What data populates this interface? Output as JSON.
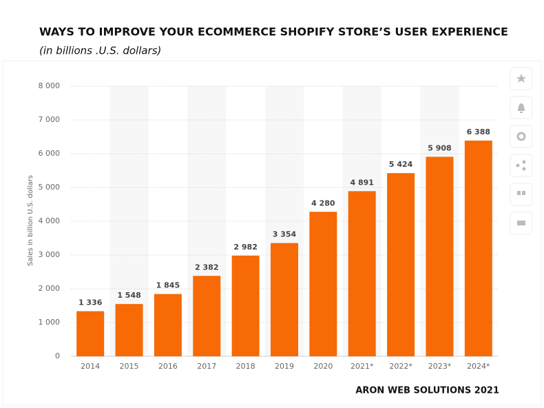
{
  "chart_data": {
    "type": "bar",
    "title": "WAYS TO IMPROVE YOUR ECOMMERCE SHOPIFY STORE’S USER EXPERIENCE",
    "subtitle": "(in billions .U.S. dollars)",
    "y_label": "Sales in billion U.S. dollars",
    "footer": "ARON WEB SOLUTIONS 2021",
    "categories": [
      "2014",
      "2015",
      "2016",
      "2017",
      "2018",
      "2019",
      "2020",
      "2021*",
      "2022*",
      "2023*",
      "2024*"
    ],
    "values": [
      1336,
      1548,
      1845,
      2382,
      2982,
      3354,
      4280,
      4891,
      5424,
      5908,
      6388
    ],
    "value_labels": [
      "1 336",
      "1 548",
      "1 845",
      "2 382",
      "2 982",
      "3 354",
      "4 280",
      "4 891",
      "5 424",
      "5 908",
      "6 388"
    ],
    "color": "#f76a05",
    "ylim": [
      0,
      8000
    ],
    "yticks": [
      0,
      {
        "value": 1000,
        "label": "1 000"
      },
      {
        "value": 2000,
        "label": "2 000"
      },
      {
        "value": 3000,
        "label": "3 000"
      },
      {
        "value": 4000,
        "label": "4 000"
      },
      {
        "value": 5000,
        "label": "5 000"
      },
      {
        "value": 6000,
        "label": "6 000"
      },
      {
        "value": 7000,
        "label": "7 000"
      },
      {
        "value": 8000,
        "label": "8 000"
      }
    ],
    "grid": true
  }
}
